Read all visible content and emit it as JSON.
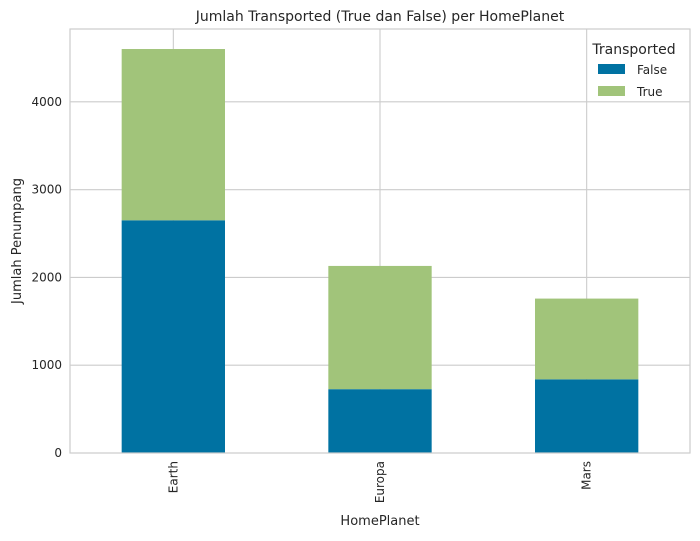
{
  "chart_data": {
    "type": "bar",
    "stacked": true,
    "title": "Jumlah Transported (True dan False) per HomePlanet",
    "xlabel": "HomePlanet",
    "ylabel": "Jumlah Penumpang",
    "categories": [
      "Earth",
      "Europa",
      "Mars"
    ],
    "series": [
      {
        "name": "False",
        "values": [
          2651,
          727,
          839
        ],
        "color": "#0072a2"
      },
      {
        "name": "True",
        "values": [
          1951,
          1404,
          920
        ],
        "color": "#a1c47a"
      }
    ],
    "ylim": [
      0,
      4830
    ],
    "yticks": [
      0,
      1000,
      2000,
      3000,
      4000
    ],
    "grid": true,
    "legend": {
      "title": "Transported",
      "placement": "top-right"
    }
  }
}
